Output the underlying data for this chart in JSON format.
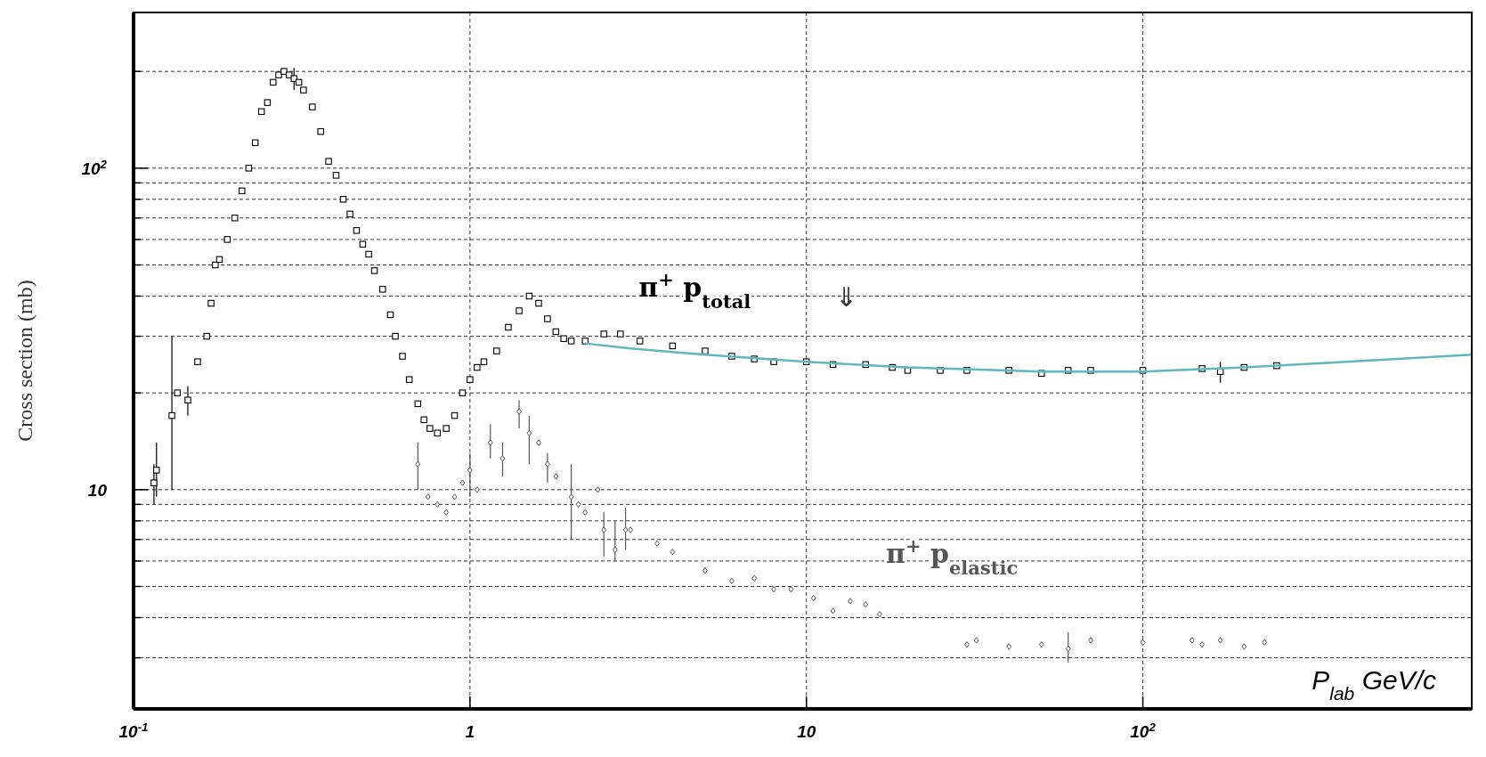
{
  "chart_data": {
    "type": "scatter",
    "ylabel": "Cross section (mb)",
    "xlabel": "P$_{lab}$ GeV/c",
    "log": "xy",
    "grid": true,
    "xlim": [
      0.1,
      950
    ],
    "ylim": [
      2.08,
      305
    ],
    "xticks": [
      {
        "value": 0.1,
        "label": "10$^{-1}$"
      },
      1,
      10,
      {
        "value": 100,
        "label": "10$^{2}$"
      }
    ],
    "yticks": [
      {
        "value": 3,
        "label": null
      },
      {
        "value": 4,
        "label": null
      },
      {
        "value": 5,
        "label": null
      },
      {
        "value": 6,
        "label": null
      },
      {
        "value": 7,
        "label": null
      },
      {
        "value": 8,
        "label": null
      },
      {
        "value": 9,
        "label": null
      },
      10,
      {
        "value": 20,
        "label": null
      },
      {
        "value": 30,
        "label": null
      },
      {
        "value": 40,
        "label": null
      },
      {
        "value": 50,
        "label": null
      },
      {
        "value": 60,
        "label": null
      },
      {
        "value": 70,
        "label": null
      },
      {
        "value": 80,
        "label": null
      },
      {
        "value": 90,
        "label": null
      },
      {
        "value": 100,
        "label": "10$^{2}$"
      },
      {
        "value": 200,
        "label": null
      }
    ],
    "series": [
      {
        "name": "π$^{+}$ p$_{total}$",
        "color": "#000000",
        "marker": "square",
        "x": [
          0.115,
          0.117,
          0.13,
          0.135,
          0.145,
          0.155,
          0.165,
          0.17,
          0.175,
          0.18,
          0.19,
          0.2,
          0.21,
          0.22,
          0.23,
          0.24,
          0.25,
          0.26,
          0.27,
          0.28,
          0.29,
          0.3,
          0.31,
          0.32,
          0.34,
          0.36,
          0.38,
          0.4,
          0.42,
          0.44,
          0.46,
          0.48,
          0.5,
          0.52,
          0.55,
          0.58,
          0.6,
          0.63,
          0.66,
          0.7,
          0.73,
          0.76,
          0.8,
          0.85,
          0.9,
          0.95,
          1.0,
          1.05,
          1.1,
          1.2,
          1.3,
          1.4,
          1.5,
          1.6,
          1.7,
          1.8,
          1.9,
          2.0,
          2.2,
          2.5,
          2.8,
          3.2,
          4,
          5,
          6,
          7,
          8,
          10,
          12,
          15,
          18,
          20,
          25,
          30,
          40,
          50,
          60,
          70,
          100,
          150,
          170,
          200,
          250
        ],
        "values": [
          10.5,
          11.5,
          17,
          20,
          19,
          25,
          30,
          38,
          50,
          52,
          60,
          70,
          85,
          100,
          120,
          150,
          160,
          185,
          195,
          200,
          195,
          190,
          185,
          175,
          155,
          130,
          105,
          95,
          80,
          72,
          64,
          58,
          54,
          48,
          42,
          35,
          30,
          26,
          22,
          18.5,
          16.5,
          15.5,
          15,
          15.5,
          17,
          20,
          22,
          24,
          25,
          27,
          32,
          36,
          40,
          38,
          34,
          31,
          29.5,
          29,
          29,
          30.5,
          30.5,
          29,
          28,
          27,
          26,
          25.5,
          25,
          25,
          24.5,
          24.5,
          24,
          23.5,
          23.5,
          23.5,
          23.5,
          23,
          23.5,
          23.5,
          23.5,
          23.8,
          23.3,
          24,
          24.3
        ],
        "errors": [
          [
            9,
            12
          ],
          [
            9.5,
            14
          ],
          [
            10,
            30
          ],
          null,
          [
            17,
            21
          ],
          null,
          null,
          null,
          null,
          null,
          null,
          null,
          null,
          null,
          null,
          null,
          null,
          null,
          null,
          null,
          null,
          [
            175,
            205
          ],
          null,
          null,
          null,
          null,
          null,
          null,
          null,
          null,
          null,
          null,
          null,
          null,
          null,
          null,
          null,
          null,
          null,
          null,
          null,
          null,
          null,
          null,
          null,
          null,
          null,
          null,
          null,
          null,
          null,
          null,
          null,
          null,
          null,
          null,
          null,
          null,
          null,
          null,
          null,
          null,
          null,
          null,
          null,
          null,
          null,
          null,
          null,
          null,
          null,
          null,
          null,
          null,
          null,
          null,
          null,
          null,
          null,
          null,
          [
            21.5,
            25
          ],
          null,
          null
        ]
      },
      {
        "name": "π$^{+}$ p$_{elastic}$",
        "color": "#555555",
        "marker": "diamond",
        "x": [
          0.7,
          0.75,
          0.8,
          0.85,
          0.9,
          0.95,
          1.0,
          1.05,
          1.15,
          1.25,
          1.4,
          1.5,
          1.6,
          1.7,
          1.8,
          2.0,
          2.1,
          2.2,
          2.4,
          2.5,
          2.7,
          2.9,
          3.0,
          3.6,
          4,
          5,
          6,
          7,
          8,
          9,
          10.5,
          12,
          13.5,
          15,
          16.5,
          30,
          32,
          40,
          50,
          60,
          70,
          100,
          140,
          150,
          170,
          200,
          230
        ],
        "values": [
          12,
          9.5,
          9,
          8.5,
          9.5,
          10.5,
          11.5,
          10,
          14,
          12.5,
          17.5,
          15,
          14,
          12,
          11,
          9.5,
          9,
          8.5,
          10,
          7.5,
          6.5,
          7.5,
          7.5,
          6.8,
          6.4,
          5.6,
          5.2,
          5.3,
          4.9,
          4.9,
          4.6,
          4.2,
          4.5,
          4.4,
          4.1,
          3.3,
          3.4,
          3.25,
          3.3,
          3.2,
          3.4,
          3.35,
          3.4,
          3.3,
          3.4,
          3.25,
          3.35
        ],
        "errors": [
          [
            10,
            14
          ],
          null,
          null,
          null,
          null,
          null,
          [
            9.5,
            13
          ],
          null,
          [
            12.5,
            16
          ],
          [
            11,
            14
          ],
          [
            15.5,
            19
          ],
          [
            12,
            17
          ],
          null,
          [
            10.5,
            13
          ],
          null,
          [
            7,
            12
          ],
          null,
          null,
          null,
          [
            6.2,
            8.5
          ],
          [
            6,
            8
          ],
          [
            6.5,
            8.8
          ],
          null,
          null,
          null,
          null,
          null,
          null,
          null,
          null,
          null,
          null,
          null,
          null,
          null,
          null,
          null,
          null,
          null,
          [
            2.9,
            3.6
          ],
          null,
          null,
          null,
          null,
          null,
          null,
          null
        ]
      },
      {
        "type": "line",
        "color": "#5fb8c0",
        "x": [
          2.2,
          3,
          5,
          10,
          20,
          50,
          100,
          200,
          500,
          950
        ],
        "values": [
          28.5,
          27.5,
          26.3,
          25,
          24,
          23.3,
          23.3,
          24,
          25.3,
          26.3
        ]
      }
    ],
    "annotations": [
      "⇓"
    ]
  }
}
